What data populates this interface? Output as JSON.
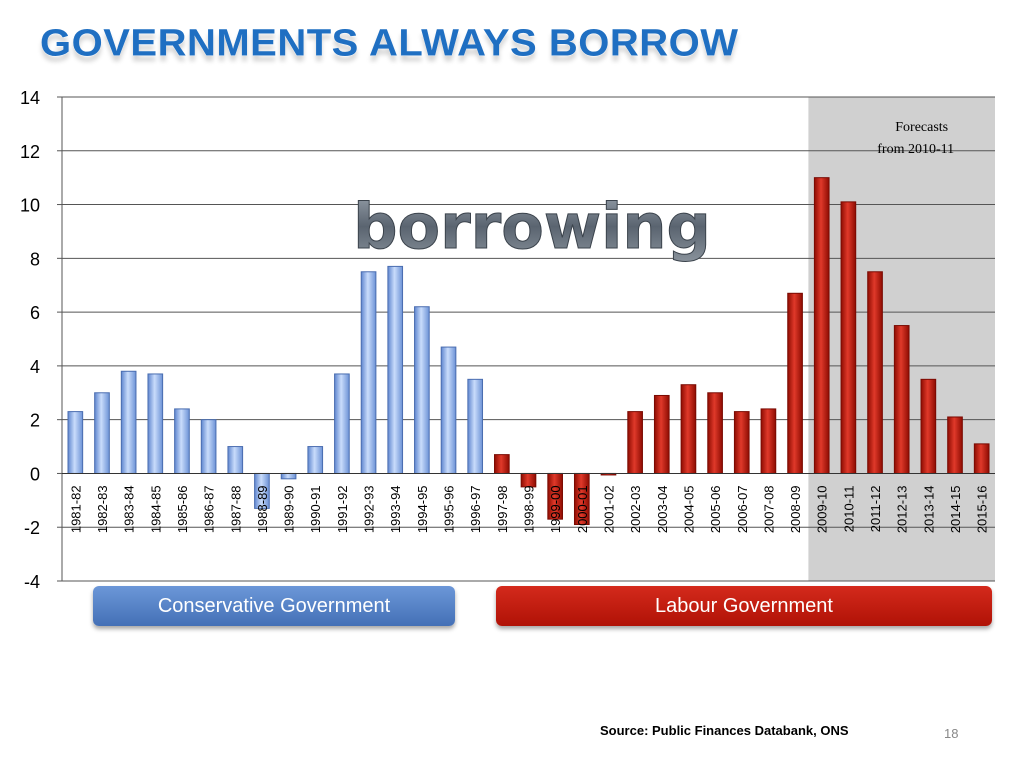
{
  "title": "GOVERNMENTS ALWAYS BORROW",
  "banners": {
    "conservative": "Conservative Government",
    "labour": "Labour  Government"
  },
  "source": "Source: Public Finances Databank, ONS",
  "page_number": "18",
  "colors": {
    "conservative_bar": "#8fb1e8",
    "labour_bar": "#c0170a",
    "forecast_shade": "#d0d0d0",
    "title": "#1f6fc2"
  },
  "chart_data": {
    "type": "bar",
    "title": "",
    "xlabel": "",
    "ylabel": "",
    "ylim": [
      -4,
      14
    ],
    "yticks": [
      -4,
      -2,
      0,
      2,
      4,
      6,
      8,
      10,
      12,
      14
    ],
    "grid": true,
    "annotations": {
      "overlay_word": "borrowing",
      "forecast_note": [
        "Forecasts",
        "from 2010-11"
      ],
      "forecast_from_category": "2009-10"
    },
    "categories": [
      "1981-82",
      "1982-83",
      "1983-84",
      "1984-85",
      "1985-86",
      "1986-87",
      "1987-88",
      "1988-89",
      "1989-90",
      "1990-91",
      "1991-92",
      "1992-93",
      "1993-94",
      "1994-95",
      "1995-96",
      "1996-97",
      "1997-98",
      "1998-99",
      "1999-00",
      "2000-01",
      "2001-02",
      "2002-03",
      "2003-04",
      "2004-05",
      "2005-06",
      "2006-07",
      "2007-08",
      "2008-09",
      "2009-10",
      "2010-11",
      "2011-12",
      "2012-13",
      "2013-14",
      "2014-15",
      "2015-16"
    ],
    "values": [
      2.3,
      3.0,
      3.8,
      3.7,
      2.4,
      2.0,
      1.0,
      -1.3,
      -0.2,
      1.0,
      3.7,
      7.5,
      7.7,
      6.2,
      4.7,
      3.5,
      0.7,
      -0.5,
      -1.7,
      -1.9,
      -0.05,
      2.3,
      2.9,
      3.3,
      3.0,
      2.3,
      2.4,
      6.7,
      11.0,
      10.1,
      7.5,
      5.5,
      3.5,
      2.1,
      1.1
    ],
    "government": [
      "Conservative",
      "Conservative",
      "Conservative",
      "Conservative",
      "Conservative",
      "Conservative",
      "Conservative",
      "Conservative",
      "Conservative",
      "Conservative",
      "Conservative",
      "Conservative",
      "Conservative",
      "Conservative",
      "Conservative",
      "Conservative",
      "Labour",
      "Labour",
      "Labour",
      "Labour",
      "Labour",
      "Labour",
      "Labour",
      "Labour",
      "Labour",
      "Labour",
      "Labour",
      "Labour",
      "Labour",
      "Labour",
      "Labour",
      "Labour",
      "Labour",
      "Labour",
      "Labour"
    ]
  }
}
